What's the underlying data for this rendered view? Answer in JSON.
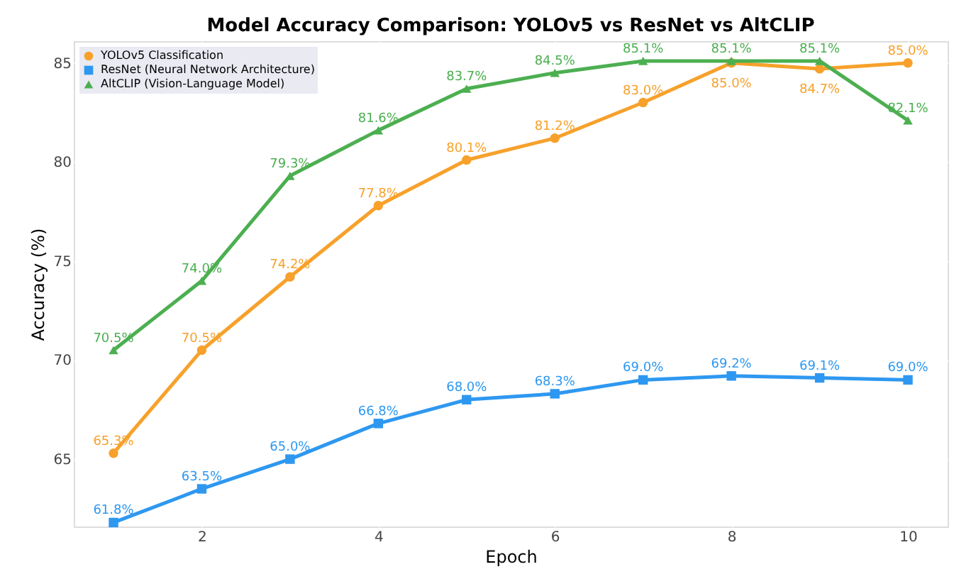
{
  "chart_data": {
    "type": "line",
    "title": "Model Accuracy Comparison: YOLOv5 vs ResNet vs AltCLIP",
    "xlabel": "Epoch",
    "ylabel": "Accuracy (%)",
    "x": [
      1,
      2,
      3,
      4,
      5,
      6,
      7,
      8,
      9,
      10
    ],
    "series": [
      {
        "name": "YOLOv5 Classification",
        "color": "#f7a12b",
        "marker": "circle",
        "values": [
          65.3,
          70.5,
          74.2,
          77.8,
          80.1,
          81.2,
          83.0,
          85.0,
          84.7,
          85.0
        ],
        "value_labels": [
          "65.3%",
          "70.5%",
          "74.2%",
          "77.8%",
          "80.1%",
          "81.2%",
          "83.0%",
          "85.0%",
          "84.7%",
          "85.0%"
        ]
      },
      {
        "name": "ResNet (Neural Network Architecture)",
        "color": "#2e98f0",
        "marker": "square",
        "values": [
          61.8,
          63.5,
          65.0,
          66.8,
          68.0,
          68.3,
          69.0,
          69.2,
          69.1,
          69.0
        ],
        "value_labels": [
          "61.8%",
          "63.5%",
          "65.0%",
          "66.8%",
          "68.0%",
          "68.3%",
          "69.0%",
          "69.2%",
          "69.1%",
          "69.0%"
        ]
      },
      {
        "name": "AltCLIP (Vision-Language Model)",
        "color": "#4caf50",
        "marker": "triangle",
        "values": [
          70.5,
          74.0,
          79.3,
          81.6,
          83.7,
          84.5,
          85.1,
          85.1,
          85.1,
          82.1
        ],
        "value_labels": [
          "70.5%",
          "74.0%",
          "79.3%",
          "81.6%",
          "83.7%",
          "84.5%",
          "85.1%",
          "85.1%",
          "85.1%",
          "82.1%"
        ]
      }
    ],
    "xlim": [
      0.55,
      10.45
    ],
    "ylim": [
      61.6,
      86.1
    ],
    "xticks": [
      2,
      4,
      6,
      8,
      10
    ],
    "yticks": [
      65,
      70,
      75,
      80,
      85
    ],
    "grid": true,
    "legend": "top left",
    "line_style": "solid"
  }
}
